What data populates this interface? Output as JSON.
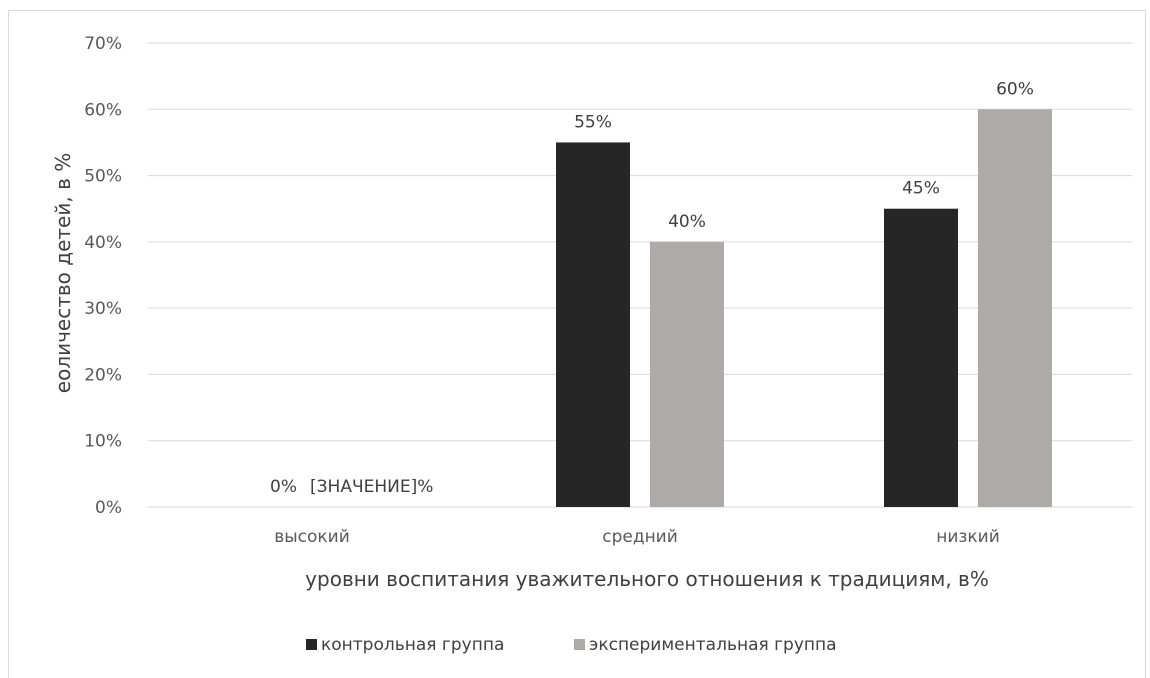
{
  "chart_data": {
    "type": "bar",
    "categories": [
      "высокий",
      "средний",
      "низкий"
    ],
    "series": [
      {
        "name": "контрольная группа",
        "values": [
          0,
          55,
          45
        ],
        "labels": [
          "0%",
          "55%",
          "45%"
        ],
        "color": "#262626"
      },
      {
        "name": "экспериментальная группа",
        "values": [
          0,
          40,
          60
        ],
        "labels": [
          "[ЗНАЧЕНИЕ]%",
          "40%",
          "60%"
        ],
        "color": "#aeaaaa"
      }
    ],
    "xlabel": "уровни воспитания уважительного отношения к традициям, в%",
    "ylabel": "еоличество детей, в %",
    "ylim": [
      0,
      70
    ],
    "yticks": [
      "0%",
      "10%",
      "20%",
      "30%",
      "40%",
      "50%",
      "60%",
      "70%"
    ],
    "grid": true,
    "legend_position": "bottom",
    "gridline_color": "#d9d9d9"
  }
}
